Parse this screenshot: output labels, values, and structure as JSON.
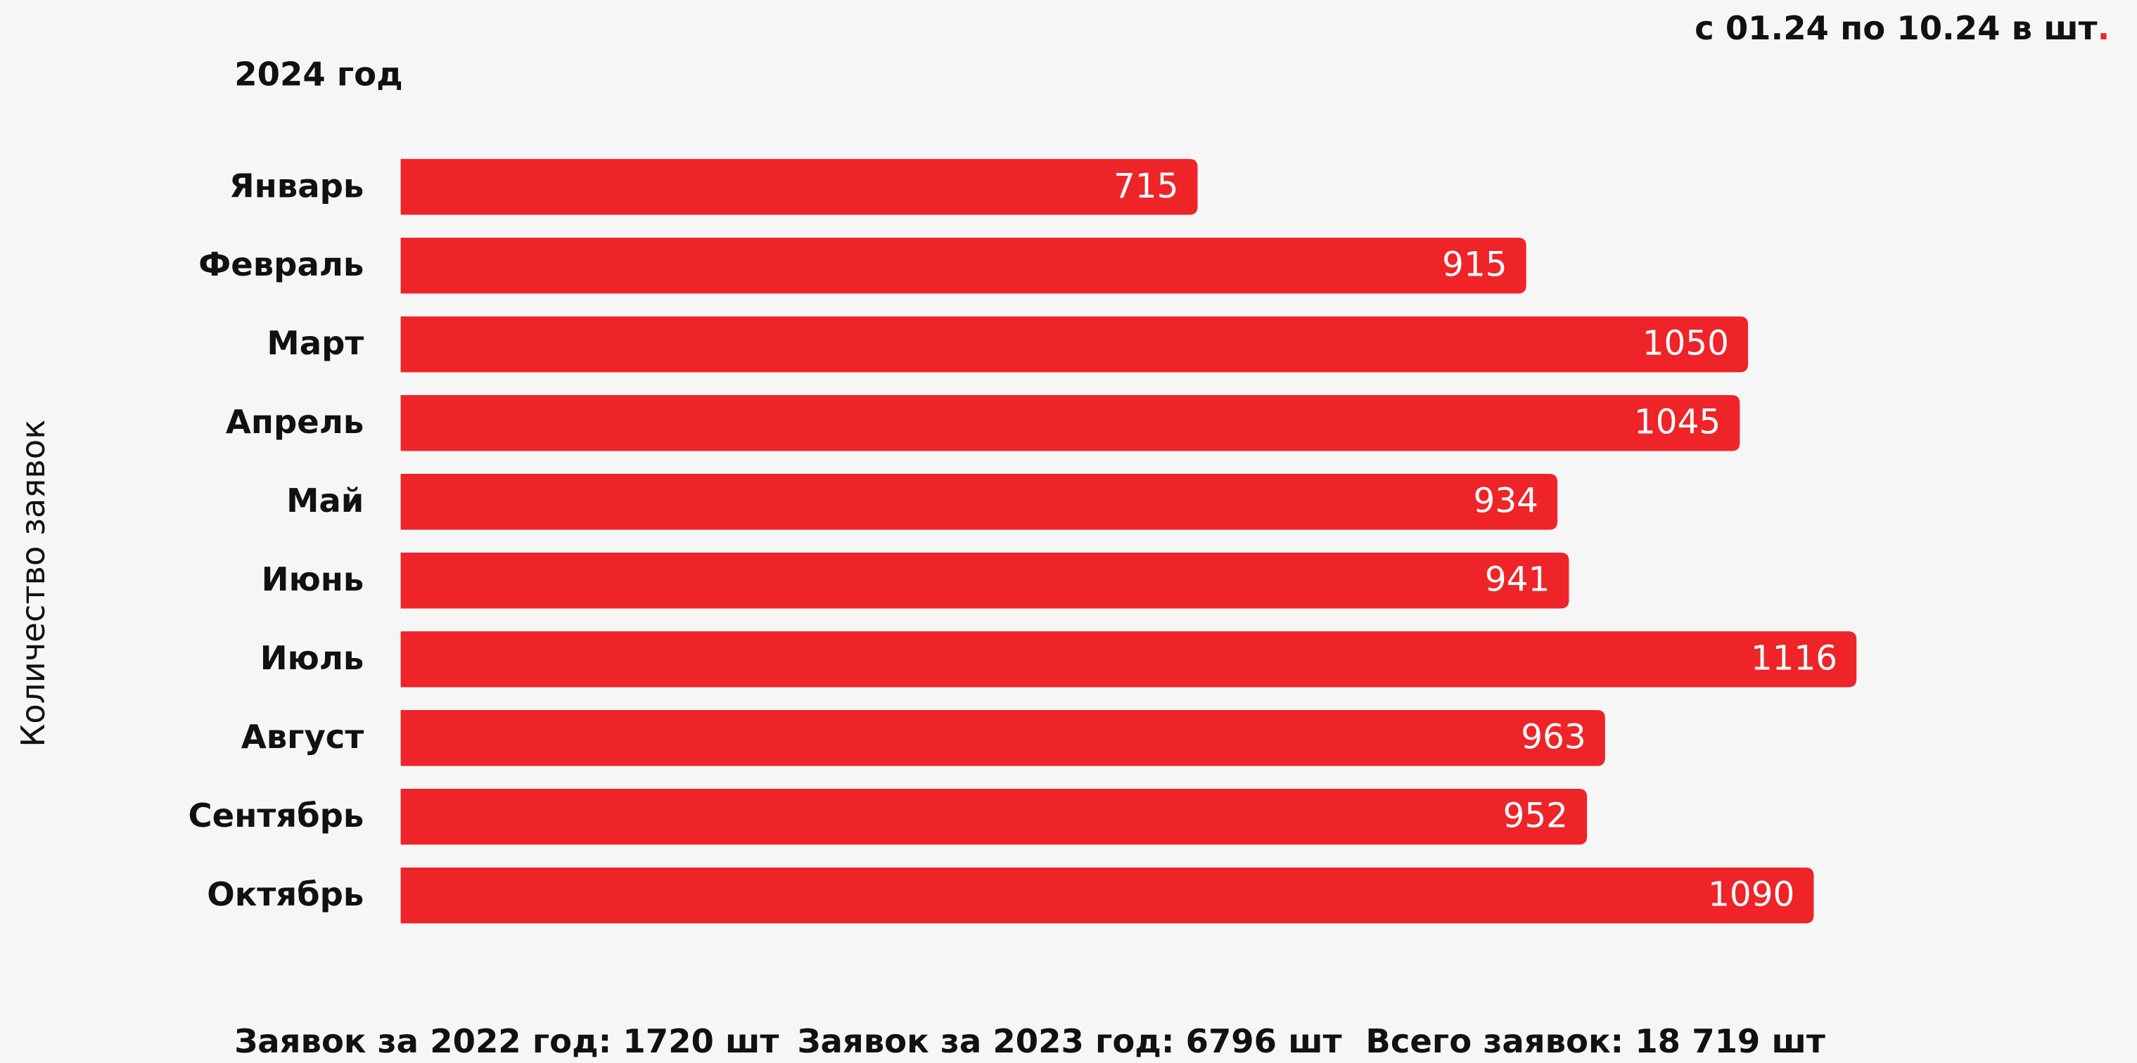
{
  "chart_data": {
    "type": "bar",
    "orientation": "horizontal",
    "title": "2024 год",
    "subtitle": "с 01.24 по 10.24 в шт.",
    "y_label": "Количество заявок",
    "categories": [
      "Январь",
      "Февраль",
      "Март",
      "Апрель",
      "Май",
      "Июнь",
      "Июль",
      "Август",
      "Сентябрь",
      "Октябрь"
    ],
    "values": [
      715,
      915,
      1050,
      1045,
      934,
      941,
      1116,
      963,
      952,
      1090
    ],
    "color": "#ee2428",
    "xlim": [
      230,
      1120
    ],
    "footer": [
      "Заявок за 2022 год: 1720 шт",
      "Заявок за 2023 год: 6796 шт",
      "Всего заявок: 18 719 шт"
    ]
  }
}
